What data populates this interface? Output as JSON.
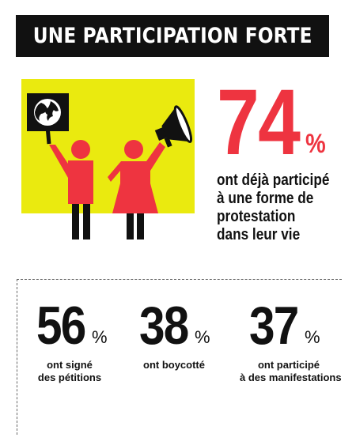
{
  "title": "UNE PARTICIPATION FORTE",
  "hero": {
    "value": "74",
    "unit": "%",
    "description": [
      "ont déjà participé",
      "à une forme de",
      "protestation",
      "dans leur vie"
    ]
  },
  "stats": [
    {
      "value": "56",
      "unit": "%",
      "description": [
        "ont signé",
        "des pétitions"
      ]
    },
    {
      "value": "38",
      "unit": "%",
      "description": [
        "ont boycotté"
      ]
    },
    {
      "value": "37",
      "unit": "%",
      "description": [
        "ont participé",
        "à des manifestations"
      ]
    }
  ],
  "colors": {
    "accent": "#ee3440",
    "yellow_panel": "#eaea0f",
    "title_bar": "#111111",
    "text": "#111111"
  },
  "icons": [
    "protest-sign-with-earth-icon",
    "person-icon",
    "megaphone-icon"
  ]
}
